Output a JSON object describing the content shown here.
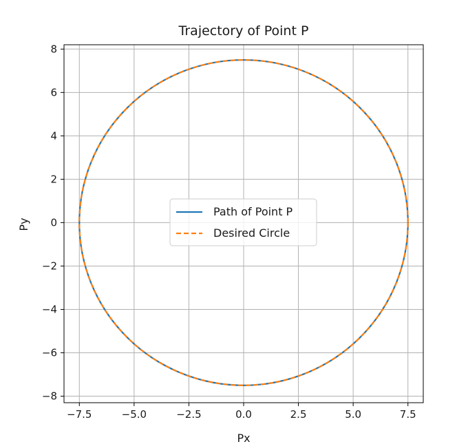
{
  "chart_data": {
    "type": "line",
    "title": "Trajectory of Point P",
    "xlabel": "Px",
    "ylabel": "Py",
    "xlim": [
      -8.2,
      8.2
    ],
    "ylim": [
      -8.3,
      8.2
    ],
    "xticks": [
      -7.5,
      -5.0,
      -2.5,
      0.0,
      2.5,
      5.0,
      7.5
    ],
    "xtick_labels": [
      "−7.5",
      "−5.0",
      "−2.5",
      "0.0",
      "2.5",
      "5.0",
      "7.5"
    ],
    "yticks": [
      -8,
      -6,
      -4,
      -2,
      0,
      2,
      4,
      6,
      8
    ],
    "ytick_labels": [
      "−8",
      "−6",
      "−4",
      "−2",
      "0",
      "2",
      "4",
      "6",
      "8"
    ],
    "grid": true,
    "legend_position": "center",
    "series": [
      {
        "name": "Path of Point P",
        "style": "solid",
        "color": "#1f77b4",
        "shape": "circle",
        "center": [
          0,
          0
        ],
        "radius": 7.5
      },
      {
        "name": "Desired Circle",
        "style": "dashed",
        "color": "#ff7f0e",
        "shape": "circle",
        "center": [
          0,
          0
        ],
        "radius": 7.5
      }
    ]
  }
}
